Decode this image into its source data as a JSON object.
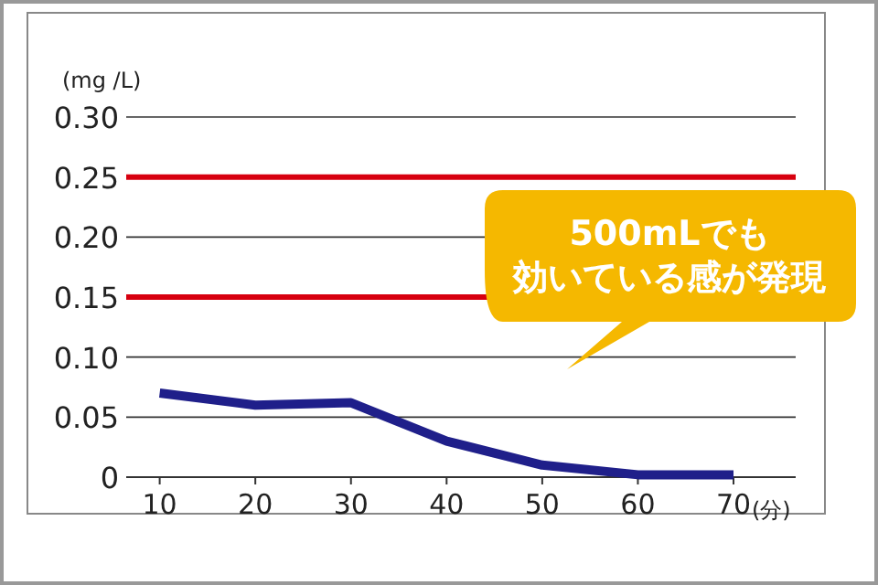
{
  "chart_data": {
    "type": "line",
    "ylabel": "(mg /L)",
    "xlabel": "(分)",
    "x": [
      10,
      20,
      30,
      40,
      50,
      60,
      70
    ],
    "series": [
      {
        "color": "#1f1f8a",
        "values": [
          0.07,
          0.06,
          0.062,
          0.03,
          0.01,
          0.002,
          0.002
        ]
      }
    ],
    "xlim": [
      6.5,
      76.5
    ],
    "xticks": [
      10,
      20,
      30,
      40,
      50,
      60,
      70
    ],
    "ylim": [
      0,
      0.3
    ],
    "yticks": [
      0,
      {
        "value": 0.05,
        "label": "0.05"
      },
      {
        "value": 0.1,
        "label": "0.10"
      },
      {
        "value": 0.15,
        "label": "0.15"
      },
      {
        "value": 0.2,
        "label": "0.20"
      },
      {
        "value": 0.25,
        "label": "0.25"
      },
      {
        "value": 0.3,
        "label": "0.30"
      }
    ],
    "ref_lines": [
      {
        "axis": "y",
        "value": 0.25,
        "color": "#d7000f"
      },
      {
        "axis": "y",
        "value": 0.15,
        "color": "#d7000f"
      }
    ],
    "annotations": [
      "500mLでも",
      "効いている感が発現"
    ],
    "grid": "y",
    "marker": "none",
    "line_style": "solid"
  }
}
